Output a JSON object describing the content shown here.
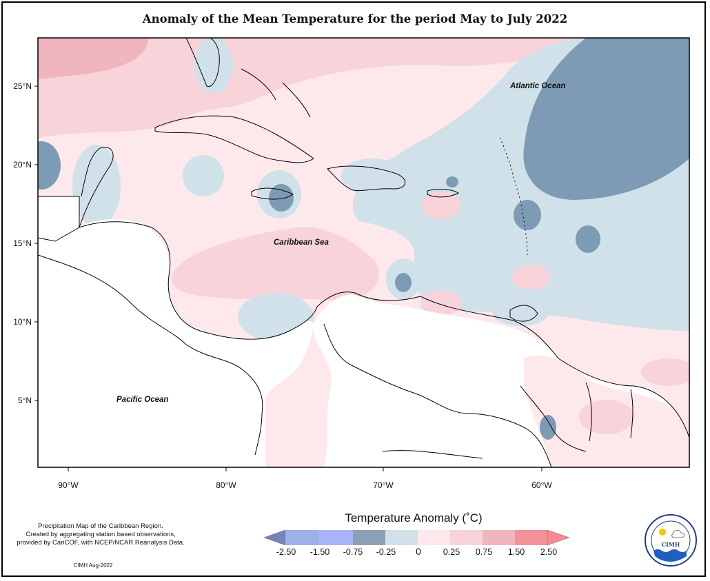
{
  "title": "Anomaly of the Mean Temperature for the period May to July 2022",
  "map": {
    "lat_ticks": [
      "25°N",
      "20°N",
      "15°N",
      "10°N",
      "5°N"
    ],
    "lon_ticks": [
      "90°W",
      "80°W",
      "70°W",
      "60°W"
    ],
    "labels": {
      "atlantic": "Atlantic Ocean",
      "caribbean": "Caribbean Sea",
      "pacific": "Pacific Ocean"
    },
    "colors": {
      "strong_negative": "#7e9bb5",
      "weak_negative": "#d0e1e9",
      "weak_positive": "#fde8ec",
      "moderate_positive": "#f8d3da",
      "strong_positive": "#efb6c0",
      "land": "#ffffff"
    }
  },
  "legend": {
    "title": "Temperature Anomaly (˚C)",
    "tick_values": [
      "-2.50",
      "-1.50",
      "-0.75",
      "-0.25",
      "0",
      "0.25",
      "0.75",
      "1.50",
      "2.50"
    ],
    "bin_colors": [
      "#7585b9",
      "#9cb2e6",
      "#aab4f8",
      "#8ca0b3",
      "#d0e1e9",
      "#fde8ec",
      "#f8d3da",
      "#efb6c0",
      "#f3919b",
      "#f58a94"
    ]
  },
  "footer": {
    "note_line1": "Precipitation Map of the Caribbean Region.",
    "note_line2": "Created by aggregating station based observations,",
    "note_line3": "provided by CariCOF, with NCEP/NCAR Reanalysis Data.",
    "credit": "CIMH Aug-2022",
    "logo_text": "CIMH"
  }
}
